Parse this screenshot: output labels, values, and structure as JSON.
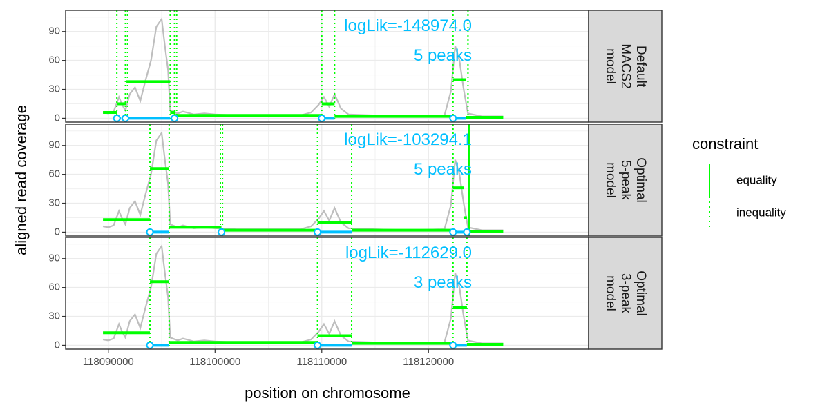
{
  "chart_data": {
    "type": "line",
    "xlabel": "position on chromosome",
    "ylabel": "aligned read coverage",
    "xlim": [
      118086000,
      118135000
    ],
    "ylim": [
      -4,
      112
    ],
    "x_ticks": [
      118090000,
      118100000,
      118110000,
      118120000
    ],
    "x_tick_labels": [
      "118090000",
      "118100000",
      "118110000",
      "118120000"
    ],
    "y_ticks": [
      0,
      30,
      60,
      90
    ],
    "y_tick_labels": [
      "0",
      "30",
      "60",
      "90"
    ],
    "grid": true,
    "colors": {
      "coverage": "#bebebe",
      "segments": "#00ff00",
      "peaks": "#00bfff",
      "annotation": "#00bfff",
      "strip_bg": "#d9d9d9"
    },
    "legend": {
      "title": "constraint",
      "position": "right",
      "entries": [
        {
          "label": "equality",
          "linetype": "solid"
        },
        {
          "label": "inequality",
          "linetype": "dotted"
        }
      ]
    },
    "coverage": [
      [
        118089500,
        6
      ],
      [
        118090000,
        5
      ],
      [
        118090500,
        7
      ],
      [
        118091000,
        22
      ],
      [
        118091300,
        14
      ],
      [
        118091600,
        8
      ],
      [
        118092000,
        25
      ],
      [
        118092500,
        32
      ],
      [
        118093000,
        18
      ],
      [
        118093500,
        40
      ],
      [
        118094000,
        60
      ],
      [
        118094500,
        95
      ],
      [
        118095000,
        103
      ],
      [
        118095300,
        75
      ],
      [
        118095600,
        50
      ],
      [
        118095800,
        8
      ],
      [
        118096500,
        5
      ],
      [
        118097000,
        7
      ],
      [
        118098000,
        4
      ],
      [
        118099000,
        5
      ],
      [
        118100000,
        4
      ],
      [
        118102000,
        3
      ],
      [
        118104000,
        3
      ],
      [
        118106000,
        3
      ],
      [
        118108000,
        3
      ],
      [
        118109000,
        6
      ],
      [
        118109700,
        14
      ],
      [
        118110200,
        22
      ],
      [
        118110700,
        12
      ],
      [
        118111200,
        25
      ],
      [
        118111800,
        10
      ],
      [
        118112500,
        4
      ],
      [
        118115000,
        3
      ],
      [
        118118000,
        2
      ],
      [
        118121500,
        3
      ],
      [
        118122100,
        28
      ],
      [
        118122500,
        75
      ],
      [
        118122900,
        60
      ],
      [
        118123300,
        30
      ],
      [
        118123700,
        5
      ],
      [
        118125000,
        2
      ],
      [
        118127000,
        2
      ]
    ],
    "panels": [
      {
        "strip": [
          "Default",
          "MACS2",
          "model"
        ],
        "logLik": "logLik=-148974.0",
        "peaks_label": "5 peaks",
        "segments": [
          [
            118089500,
            118090800,
            6
          ],
          [
            118090800,
            118091700,
            15
          ],
          [
            118091700,
            118095800,
            38
          ],
          [
            118095800,
            118096300,
            6
          ],
          [
            118096300,
            118110000,
            3
          ],
          [
            118110000,
            118111200,
            15
          ],
          [
            118111200,
            118122300,
            2
          ],
          [
            118122300,
            118123500,
            40
          ],
          [
            118123500,
            118127000,
            1
          ]
        ],
        "peaks": [
          [
            118090800,
            118091200
          ],
          [
            118091600,
            118095800
          ],
          [
            118096200,
            118096400
          ],
          [
            118110000,
            118111200
          ],
          [
            118122300,
            118123500
          ]
        ],
        "changepoints": [
          [
            118090800,
            "inequality"
          ],
          [
            118091600,
            "inequality"
          ],
          [
            118091800,
            "inequality"
          ],
          [
            118095800,
            "inequality"
          ],
          [
            118096200,
            "inequality"
          ],
          [
            118096400,
            "inequality"
          ],
          [
            118110000,
            "inequality"
          ],
          [
            118111200,
            "inequality"
          ],
          [
            118122300,
            "inequality"
          ],
          [
            118123700,
            "inequality"
          ]
        ]
      },
      {
        "strip": [
          "Optimal",
          "5-peak",
          "model"
        ],
        "logLik": "logLik=-103294.1",
        "peaks_label": "5 peaks",
        "segments": [
          [
            118089500,
            118093900,
            13
          ],
          [
            118093900,
            118095700,
            66
          ],
          [
            118095700,
            118100600,
            5
          ],
          [
            118100600,
            118109600,
            2
          ],
          [
            118109600,
            118112800,
            10
          ],
          [
            118112800,
            118122300,
            2
          ],
          [
            118122300,
            118123300,
            46
          ],
          [
            118123300,
            118123600,
            15
          ],
          [
            118123600,
            118127000,
            1
          ]
        ],
        "peaks": [
          [
            118093900,
            118095700
          ],
          [
            118100600,
            118100600
          ],
          [
            118109600,
            118112800
          ],
          [
            118122300,
            118123300
          ],
          [
            118123600,
            118123600
          ]
        ],
        "changepoints": [
          [
            118093900,
            "inequality"
          ],
          [
            118095700,
            "inequality"
          ],
          [
            118100500,
            "inequality"
          ],
          [
            118100700,
            "inequality"
          ],
          [
            118109600,
            "inequality"
          ],
          [
            118112800,
            "inequality"
          ],
          [
            118122300,
            "inequality"
          ],
          [
            118123800,
            "equality"
          ]
        ]
      },
      {
        "strip": [
          "Optimal",
          "3-peak",
          "model"
        ],
        "logLik": "logLik=-112629.0",
        "peaks_label": "3 peaks",
        "segments": [
          [
            118089500,
            118093900,
            13
          ],
          [
            118093900,
            118095700,
            66
          ],
          [
            118095700,
            118109600,
            3
          ],
          [
            118109600,
            118112800,
            10
          ],
          [
            118112800,
            118122300,
            2
          ],
          [
            118122300,
            118123600,
            39
          ],
          [
            118123600,
            118127000,
            1
          ]
        ],
        "peaks": [
          [
            118093900,
            118095700
          ],
          [
            118109600,
            118112800
          ],
          [
            118122300,
            118123600
          ]
        ],
        "changepoints": [
          [
            118093900,
            "inequality"
          ],
          [
            118095700,
            "inequality"
          ],
          [
            118109600,
            "inequality"
          ],
          [
            118112800,
            "inequality"
          ],
          [
            118122300,
            "inequality"
          ],
          [
            118123600,
            "inequality"
          ]
        ]
      }
    ]
  }
}
